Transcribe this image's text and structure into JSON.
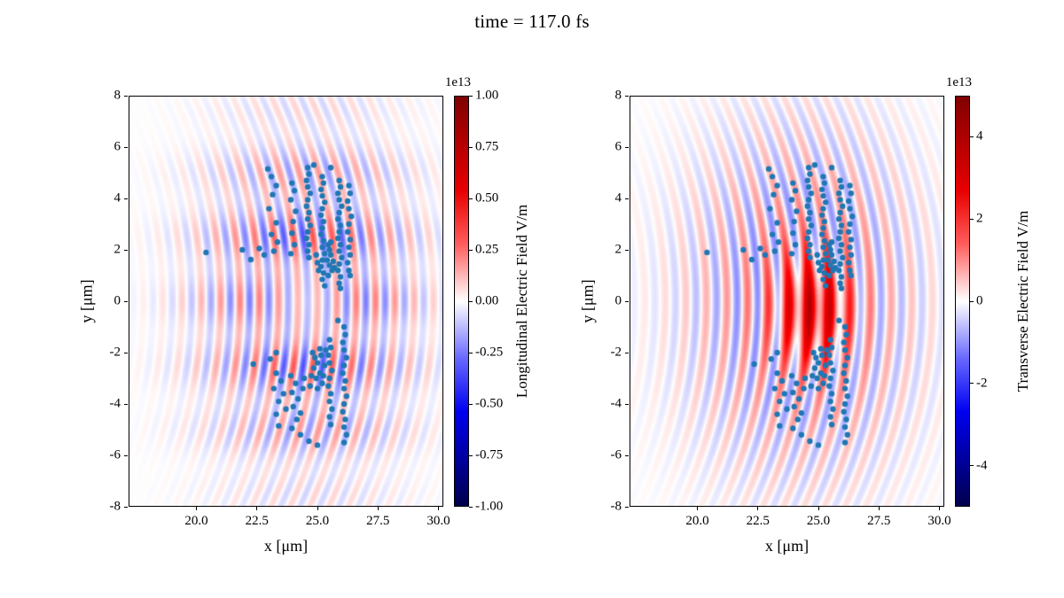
{
  "figure": {
    "title": "time = 117.0 fs",
    "scatter_color": "#1f77b4",
    "background": "#ffffff"
  },
  "chart_data": [
    {
      "type": "heatmap",
      "overlay": "scatter",
      "xlabel": "x [μm]",
      "ylabel": "y [μm]",
      "xlim": [
        17.2,
        30.2
      ],
      "ylim": [
        -8,
        8
      ],
      "x_ticks": [
        "20.0",
        "22.5",
        "25.0",
        "27.5",
        "30.0"
      ],
      "x_tick_values": [
        20.0,
        22.5,
        25.0,
        27.5,
        30.0
      ],
      "y_ticks": [
        "8",
        "6",
        "4",
        "2",
        "0",
        "-2",
        "-4",
        "-6",
        "-8"
      ],
      "y_tick_values": [
        8,
        6,
        4,
        2,
        0,
        -2,
        -4,
        -6,
        -8
      ],
      "grid": false,
      "colorbar": {
        "label": "Longitudinal Electric Field V/m",
        "scale": "1e13",
        "colormap": "seismic",
        "range": [
          -1.0,
          1.0
        ],
        "ticks": [
          "1.00",
          "0.75",
          "0.50",
          "0.25",
          "0.00",
          "-0.25",
          "-0.50",
          "-0.75",
          "-1.00"
        ],
        "tick_values": [
          1.0,
          0.75,
          0.5,
          0.25,
          0.0,
          -0.25,
          -0.5,
          -0.75,
          -1.0
        ]
      },
      "field_model": {
        "wave": {
          "wavelength": 0.8,
          "phase": 0.0,
          "curvature": 0.03,
          "amp": 0.42,
          "x_center": 24.6,
          "x_sigma": 3.0,
          "y_sigma": 4.3,
          "y_mod_period": 2.6,
          "y_mod_depth": 0.45,
          "gap": {
            "x": 24.6,
            "sx": 1.4,
            "sy": 1.0,
            "depth": 0.7
          }
        }
      }
    },
    {
      "type": "heatmap",
      "overlay": "scatter",
      "xlabel": "x [μm]",
      "ylabel": "y [μm]",
      "xlim": [
        17.2,
        30.2
      ],
      "ylim": [
        -8,
        8
      ],
      "x_ticks": [
        "20.0",
        "22.5",
        "25.0",
        "27.5",
        "30.0"
      ],
      "x_tick_values": [
        20.0,
        22.5,
        25.0,
        27.5,
        30.0
      ],
      "y_ticks": [
        "8",
        "6",
        "4",
        "2",
        "0",
        "-2",
        "-4",
        "-6",
        "-8"
      ],
      "y_tick_values": [
        8,
        6,
        4,
        2,
        0,
        -2,
        -4,
        -6,
        -8
      ],
      "grid": false,
      "colorbar": {
        "label": "Transverse Electric Field V/m",
        "scale": "1e13",
        "colormap": "seismic",
        "range": [
          -5.0,
          5.0
        ],
        "ticks": [
          "4",
          "2",
          "0",
          "-2",
          "-4"
        ],
        "tick_values": [
          4,
          2,
          0,
          -2,
          -4
        ]
      },
      "field_model": {
        "wave": {
          "wavelength": 0.85,
          "phase": 1.8,
          "curvature": 0.03,
          "amp": 0.32,
          "x_center": 24.3,
          "x_sigma": 3.2,
          "y_sigma": 4.6,
          "y_mod_period": 0,
          "y_mod_depth": 0
        },
        "blob": {
          "x": 24.8,
          "y": -0.3,
          "sx": 1.1,
          "sy": 1.5,
          "amp": 0.5
        }
      }
    }
  ],
  "scatter_points": [
    [
      20.4,
      1.9
    ],
    [
      21.9,
      2.0
    ],
    [
      22.25,
      1.62
    ],
    [
      22.6,
      2.05
    ],
    [
      22.8,
      1.8
    ],
    [
      22.35,
      -2.45
    ],
    [
      22.95,
      5.15
    ],
    [
      23.1,
      4.85
    ],
    [
      23.3,
      4.5
    ],
    [
      23.15,
      4.15
    ],
    [
      23.0,
      3.6
    ],
    [
      23.3,
      3.05
    ],
    [
      23.1,
      2.6
    ],
    [
      23.35,
      2.3
    ],
    [
      23.2,
      1.95
    ],
    [
      23.95,
      4.6
    ],
    [
      24.05,
      4.3
    ],
    [
      23.9,
      3.95
    ],
    [
      24.1,
      3.5
    ],
    [
      24.0,
      3.1
    ],
    [
      23.95,
      2.65
    ],
    [
      24.05,
      2.2
    ],
    [
      23.9,
      1.85
    ],
    [
      24.6,
      5.2
    ],
    [
      24.65,
      4.95
    ],
    [
      24.55,
      4.7
    ],
    [
      24.6,
      4.45
    ],
    [
      24.7,
      4.2
    ],
    [
      24.6,
      3.95
    ],
    [
      24.55,
      3.7
    ],
    [
      24.65,
      3.45
    ],
    [
      24.6,
      3.2
    ],
    [
      24.7,
      2.95
    ],
    [
      24.6,
      2.7
    ],
    [
      24.55,
      2.45
    ],
    [
      24.65,
      2.2
    ],
    [
      24.6,
      1.95
    ],
    [
      24.65,
      1.7
    ],
    [
      24.85,
      5.3
    ],
    [
      25.55,
      5.2
    ],
    [
      25.2,
      4.85
    ],
    [
      25.25,
      4.6
    ],
    [
      25.15,
      4.35
    ],
    [
      25.2,
      4.1
    ],
    [
      25.3,
      3.85
    ],
    [
      25.2,
      3.6
    ],
    [
      25.15,
      3.35
    ],
    [
      25.25,
      3.1
    ],
    [
      25.2,
      2.85
    ],
    [
      25.15,
      2.6
    ],
    [
      25.25,
      2.35
    ],
    [
      25.2,
      2.1
    ],
    [
      25.3,
      1.85
    ],
    [
      25.2,
      1.6
    ],
    [
      25.15,
      1.35
    ],
    [
      25.25,
      1.1
    ],
    [
      25.2,
      0.85
    ],
    [
      25.3,
      0.6
    ],
    [
      25.45,
      2.2
    ],
    [
      25.5,
      2.0
    ],
    [
      25.55,
      1.8
    ],
    [
      25.4,
      1.6
    ],
    [
      25.5,
      1.4
    ],
    [
      25.6,
      1.2
    ],
    [
      25.45,
      1.0
    ],
    [
      25.55,
      2.3
    ],
    [
      25.0,
      1.5
    ],
    [
      25.05,
      1.2
    ],
    [
      24.95,
      1.8
    ],
    [
      25.65,
      1.55
    ],
    [
      25.7,
      1.3
    ],
    [
      25.9,
      4.7
    ],
    [
      25.95,
      4.45
    ],
    [
      25.85,
      4.2
    ],
    [
      25.9,
      3.95
    ],
    [
      26.0,
      3.7
    ],
    [
      25.9,
      3.45
    ],
    [
      25.85,
      3.2
    ],
    [
      25.95,
      2.95
    ],
    [
      25.9,
      2.7
    ],
    [
      25.85,
      2.45
    ],
    [
      25.95,
      2.2
    ],
    [
      25.9,
      1.95
    ],
    [
      26.0,
      1.7
    ],
    [
      25.9,
      1.45
    ],
    [
      25.85,
      1.2
    ],
    [
      25.95,
      0.95
    ],
    [
      25.9,
      0.7
    ],
    [
      25.95,
      0.5
    ],
    [
      26.3,
      4.5
    ],
    [
      26.35,
      4.2
    ],
    [
      26.25,
      3.9
    ],
    [
      26.3,
      3.6
    ],
    [
      26.4,
      3.3
    ],
    [
      26.3,
      3.0
    ],
    [
      26.25,
      2.7
    ],
    [
      26.35,
      2.4
    ],
    [
      26.3,
      2.1
    ],
    [
      26.35,
      1.8
    ],
    [
      26.25,
      1.5
    ],
    [
      26.3,
      1.2
    ],
    [
      26.35,
      1.0
    ],
    [
      23.3,
      -2.0
    ],
    [
      23.05,
      -2.25
    ],
    [
      23.3,
      -2.8
    ],
    [
      23.5,
      -3.1
    ],
    [
      23.2,
      -3.4
    ],
    [
      23.6,
      -3.6
    ],
    [
      23.4,
      -3.9
    ],
    [
      23.7,
      -4.2
    ],
    [
      23.3,
      -4.4
    ],
    [
      23.9,
      -2.9
    ],
    [
      24.1,
      -3.2
    ],
    [
      23.95,
      -3.55
    ],
    [
      24.2,
      -3.8
    ],
    [
      24.0,
      -4.1
    ],
    [
      24.3,
      -4.35
    ],
    [
      24.15,
      -4.6
    ],
    [
      24.45,
      -3.0
    ],
    [
      24.4,
      -3.4
    ],
    [
      24.8,
      -2.0
    ],
    [
      24.9,
      -2.2
    ],
    [
      25.0,
      -2.4
    ],
    [
      24.85,
      -2.6
    ],
    [
      25.1,
      -2.8
    ],
    [
      24.95,
      -3.0
    ],
    [
      25.2,
      -3.2
    ],
    [
      25.0,
      -3.4
    ],
    [
      25.15,
      -2.1
    ],
    [
      25.3,
      -2.5
    ],
    [
      25.25,
      -2.9
    ],
    [
      24.75,
      -2.9
    ],
    [
      24.7,
      -3.3
    ],
    [
      25.35,
      -1.9
    ],
    [
      25.1,
      -1.85
    ],
    [
      25.5,
      -1.5
    ],
    [
      25.55,
      -1.8
    ],
    [
      25.45,
      -2.1
    ],
    [
      25.5,
      -2.4
    ],
    [
      25.6,
      -2.7
    ],
    [
      25.5,
      -3.0
    ],
    [
      25.45,
      -3.3
    ],
    [
      25.55,
      -3.6
    ],
    [
      25.5,
      -3.9
    ],
    [
      25.6,
      -4.2
    ],
    [
      25.5,
      -4.5
    ],
    [
      25.55,
      -4.8
    ],
    [
      26.1,
      -1.0
    ],
    [
      26.15,
      -1.3
    ],
    [
      26.05,
      -1.6
    ],
    [
      26.1,
      -1.9
    ],
    [
      26.2,
      -2.2
    ],
    [
      26.1,
      -2.5
    ],
    [
      26.05,
      -2.8
    ],
    [
      26.15,
      -3.1
    ],
    [
      26.1,
      -3.4
    ],
    [
      26.2,
      -3.7
    ],
    [
      26.1,
      -4.0
    ],
    [
      26.05,
      -4.3
    ],
    [
      26.15,
      -4.6
    ],
    [
      26.1,
      -4.9
    ],
    [
      26.2,
      -5.2
    ],
    [
      26.1,
      -5.5
    ],
    [
      24.3,
      -5.2
    ],
    [
      24.65,
      -5.45
    ],
    [
      25.0,
      -5.6
    ],
    [
      23.95,
      -4.95
    ],
    [
      23.4,
      -4.85
    ],
    [
      25.85,
      -0.75
    ]
  ]
}
